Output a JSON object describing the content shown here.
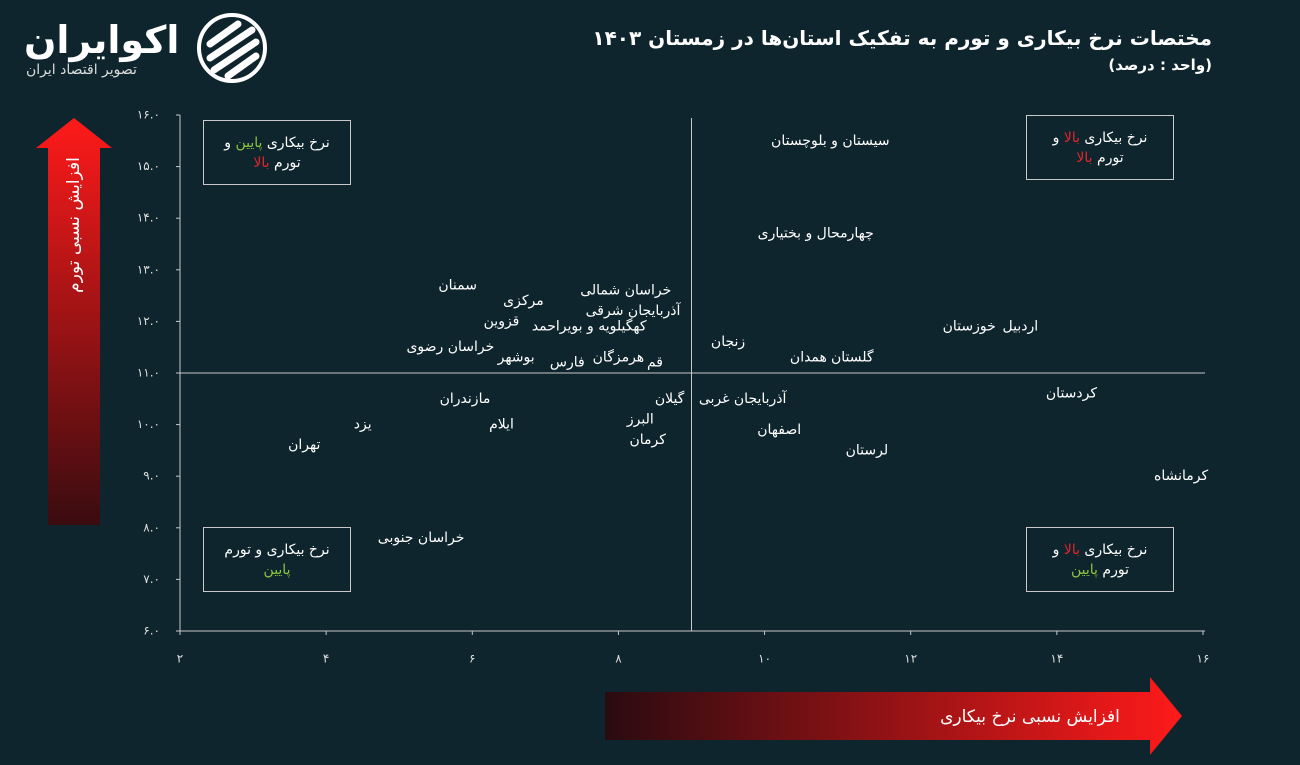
{
  "logo": {
    "name": "اکوایران",
    "tagline": "تصویر اقتصاد ایران"
  },
  "chart_data": {
    "type": "scatter",
    "title": "مختصات نرخ بیکاری و تورم به تفکیک استان‌ها در زمستان ۱۴۰۳",
    "subtitle": "(واحد : درصد)",
    "x_label": "افزایش نسبی نرخ بیکاری",
    "y_label": "افزایش نسبی تورم",
    "labels": [
      "سیستان و بلوچستان",
      "چهارمحال و بختیاری",
      "اردبیل",
      "خوزستان",
      "زنجان",
      "گلستان",
      "همدان",
      "کردستان",
      "آذربایجان غربی",
      "اصفهان",
      "لرستان",
      "کرمانشاه",
      "سمنان",
      "مرکزی",
      "قزوین",
      "کهگیلویه و بویراحمد",
      "خراسان رضوی",
      "بوشهر",
      "فارس",
      "هرمزگان",
      "قم",
      "خراسان شمالی",
      "آذربایجان شرقی",
      "مازندران",
      "یزد",
      "ایلام",
      "تهران",
      "گیلان",
      "البرز",
      "کرمان",
      "خراسان جنوبی"
    ],
    "x": [
      10.9,
      10.7,
      13.5,
      12.8,
      9.5,
      11.2,
      10.6,
      14.2,
      9.7,
      10.2,
      11.4,
      15.7,
      5.8,
      6.7,
      6.4,
      7.6,
      5.7,
      6.6,
      7.3,
      8.0,
      8.5,
      8.1,
      8.2,
      5.9,
      4.5,
      6.4,
      3.7,
      8.7,
      8.3,
      8.4,
      5.3
    ],
    "values": [
      15.5,
      13.7,
      11.9,
      11.9,
      11.6,
      11.3,
      11.3,
      10.6,
      10.5,
      9.9,
      9.5,
      9.0,
      12.7,
      12.4,
      12.0,
      11.9,
      11.5,
      11.3,
      11.2,
      11.3,
      11.2,
      12.6,
      12.2,
      10.5,
      10.0,
      10.0,
      9.6,
      10.5,
      10.1,
      9.7,
      7.8
    ],
    "xlim": [
      2,
      16
    ],
    "ylim": [
      6,
      16
    ],
    "xticks": [
      {
        "value": 2,
        "label": "۲"
      },
      {
        "value": 4,
        "label": "۴"
      },
      {
        "value": 6,
        "label": "۶"
      },
      {
        "value": 8,
        "label": "۸"
      },
      {
        "value": 10,
        "label": "۱۰"
      },
      {
        "value": 12,
        "label": "۱۲"
      },
      {
        "value": 14,
        "label": "۱۴"
      },
      {
        "value": 16,
        "label": "۱۶"
      }
    ],
    "yticks": [
      {
        "value": 6,
        "label": "۶.۰"
      },
      {
        "value": 7,
        "label": "۷.۰"
      },
      {
        "value": 8,
        "label": "۸.۰"
      },
      {
        "value": 9,
        "label": "۹.۰"
      },
      {
        "value": 10,
        "label": "۱۰.۰"
      },
      {
        "value": 11,
        "label": "۱۱.۰"
      },
      {
        "value": 12,
        "label": "۱۲.۰"
      },
      {
        "value": 13,
        "label": "۱۳.۰"
      },
      {
        "value": 14,
        "label": "۱۴.۰"
      },
      {
        "value": 15,
        "label": "۱۵.۰"
      },
      {
        "value": 16,
        "label": "۱۶.۰"
      }
    ],
    "reference_lines": {
      "x": 9,
      "y": 11
    },
    "quadrants": [
      {
        "lines": [
          [
            {
              "text": "نرخ بیکاری "
            },
            {
              "text": "پایین",
              "color": "#8cc63f"
            },
            {
              "text": " و"
            }
          ],
          [
            {
              "text": "تورم "
            },
            {
              "text": "بالا",
              "color": "#e3262b"
            }
          ]
        ]
      },
      {
        "lines": [
          [
            {
              "text": "نرخ بیکاری "
            },
            {
              "text": "بالا",
              "color": "#e3262b"
            },
            {
              "text": " و"
            }
          ],
          [
            {
              "text": "تورم "
            },
            {
              "text": "بالا",
              "color": "#e3262b"
            }
          ]
        ]
      },
      {
        "lines": [
          [
            {
              "text": "نرخ بیکاری و تورم"
            }
          ],
          [
            {
              "text": "پایین",
              "color": "#8cc63f"
            }
          ]
        ]
      },
      {
        "lines": [
          [
            {
              "text": "نرخ بیکاری "
            },
            {
              "text": "بالا",
              "color": "#e3262b"
            },
            {
              "text": " و"
            }
          ],
          [
            {
              "text": "تورم "
            },
            {
              "text": "پایین",
              "color": "#8cc63f"
            }
          ]
        ]
      }
    ]
  }
}
